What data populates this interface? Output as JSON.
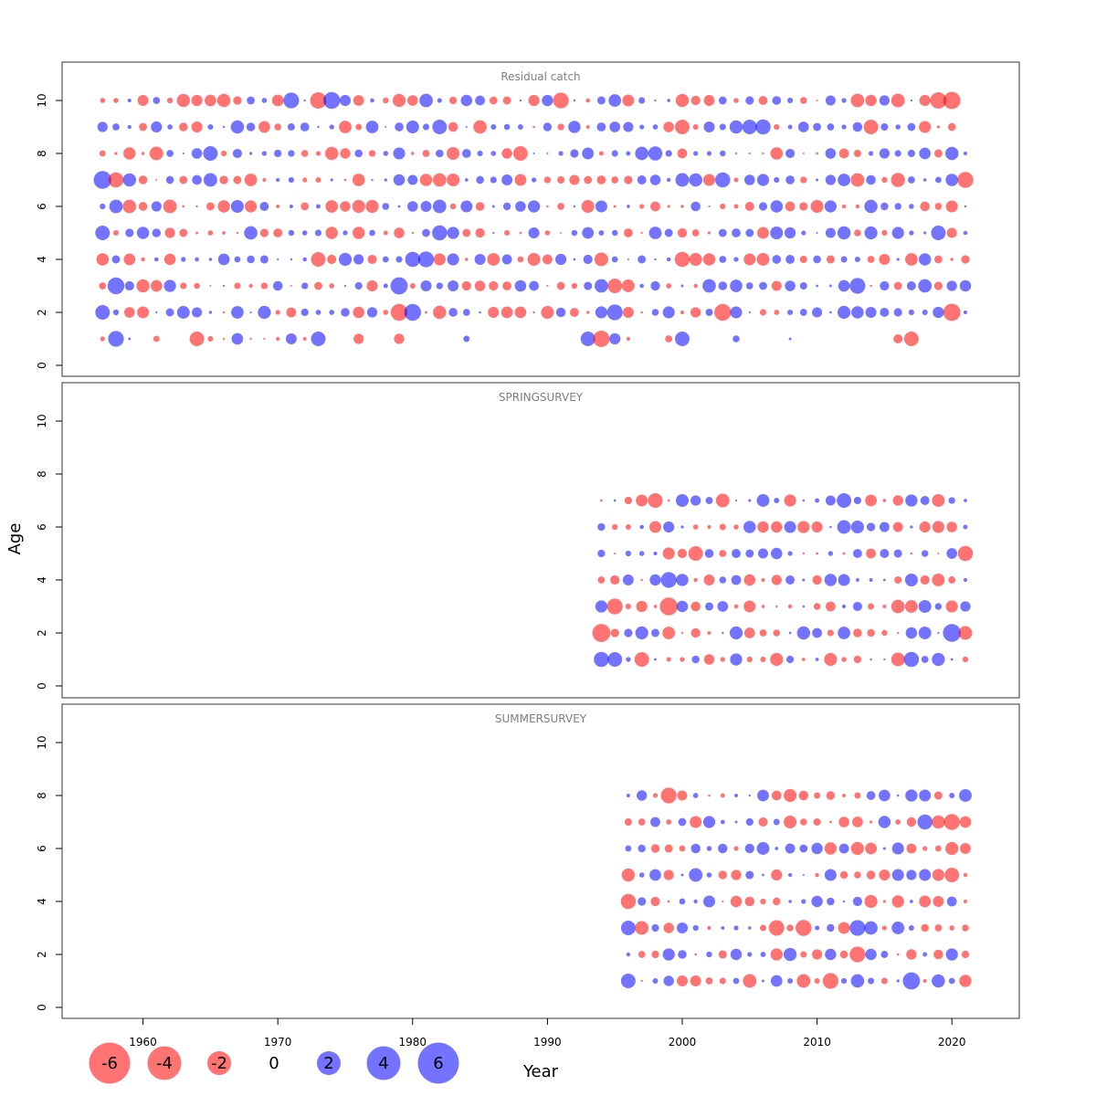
{
  "chart_data": {
    "type": "scatter",
    "subtype": "bubble-residuals",
    "xlabel": "Year",
    "ylabel": "Age",
    "xlim": [
      1954,
      2025
    ],
    "ylim": [
      -0.5,
      11
    ],
    "x_ticks": [
      1960,
      1970,
      1980,
      1990,
      2000,
      2010,
      2020
    ],
    "y_ticks": [
      0,
      2,
      4,
      6,
      8,
      10
    ],
    "colors": {
      "positive": "#0000ff",
      "negative": "#ff0000",
      "opacity": 0.55
    },
    "legend": {
      "placement": "bottom-left",
      "entries": [
        {
          "label": "-6",
          "value": -6
        },
        {
          "label": "-4",
          "value": -4
        },
        {
          "label": "-2",
          "value": -2
        },
        {
          "label": "0",
          "value": 0
        },
        {
          "label": "2",
          "value": 2
        },
        {
          "label": "4",
          "value": 4
        },
        {
          "label": "6",
          "value": 6
        }
      ]
    },
    "panels": [
      {
        "title": "Residual catch",
        "years": [
          1957,
          2021
        ],
        "ages": [
          1,
          10
        ],
        "missing": [
          [
            1960,
            1
          ],
          [
            1962,
            1
          ],
          [
            1963,
            1
          ],
          [
            1974,
            1
          ],
          [
            1975,
            1
          ],
          [
            1977,
            1
          ],
          [
            1978,
            1
          ],
          [
            1980,
            1
          ],
          [
            1981,
            1
          ],
          [
            1982,
            1
          ],
          [
            1983,
            1
          ],
          [
            1985,
            1
          ],
          [
            1986,
            1
          ],
          [
            1987,
            1
          ],
          [
            1988,
            1
          ],
          [
            1989,
            1
          ],
          [
            1990,
            1
          ],
          [
            1991,
            1
          ],
          [
            1992,
            1
          ],
          [
            1997,
            1
          ],
          [
            1998,
            1
          ],
          [
            2001,
            1
          ],
          [
            2002,
            1
          ],
          [
            2003,
            1
          ],
          [
            2005,
            1
          ],
          [
            2006,
            1
          ],
          [
            2007,
            1
          ],
          [
            2009,
            1
          ],
          [
            2010,
            1
          ],
          [
            2011,
            1
          ],
          [
            2012,
            1
          ],
          [
            2013,
            1
          ],
          [
            2014,
            1
          ],
          [
            2015,
            1
          ],
          [
            2018,
            1
          ],
          [
            2019,
            1
          ],
          [
            2020,
            1
          ],
          [
            2021,
            1
          ],
          [
            2021,
            10
          ],
          [
            2021,
            9
          ]
        ],
        "seed": 11,
        "highlights": [
          [
            1957,
            7,
            4.5
          ],
          [
            1958,
            7,
            -3.2
          ],
          [
            1974,
            10,
            4.0
          ],
          [
            1973,
            10,
            -3.8
          ],
          [
            1971,
            10,
            3.5
          ],
          [
            2020,
            10,
            -4.2
          ],
          [
            2019,
            10,
            -3.8
          ],
          [
            1982,
            9,
            3.0
          ],
          [
            2006,
            9,
            3.2
          ],
          [
            2005,
            9,
            3.0
          ],
          [
            2000,
            9,
            -3.0
          ],
          [
            2014,
            9,
            -3.0
          ],
          [
            1965,
            8,
            3.0
          ],
          [
            1988,
            8,
            -3.0
          ],
          [
            1998,
            8,
            2.8
          ],
          [
            2003,
            7,
            3.2
          ],
          [
            2021,
            7,
            -3.6
          ],
          [
            2016,
            7,
            -2.8
          ],
          [
            1957,
            5,
            3.0
          ],
          [
            1982,
            5,
            3.2
          ],
          [
            2019,
            5,
            3.0
          ],
          [
            1980,
            4,
            3.2
          ],
          [
            1981,
            4,
            3.5
          ],
          [
            2000,
            4,
            -3.2
          ],
          [
            1973,
            4,
            -3.0
          ],
          [
            1958,
            3,
            4.0
          ],
          [
            1979,
            3,
            4.2
          ],
          [
            2013,
            3,
            3.5
          ],
          [
            1995,
            3,
            -3.0
          ],
          [
            1957,
            2,
            3.0
          ],
          [
            1979,
            2,
            -4.0
          ],
          [
            1980,
            2,
            4.0
          ],
          [
            2003,
            2,
            -4.0
          ],
          [
            2020,
            2,
            -4.2
          ],
          [
            1995,
            2,
            3.5
          ],
          [
            1958,
            1,
            3.5
          ],
          [
            1994,
            1,
            -3.8
          ],
          [
            1993,
            1,
            3.0
          ],
          [
            2000,
            1,
            3.0
          ],
          [
            2017,
            1,
            -3.0
          ],
          [
            1973,
            1,
            3.0
          ],
          [
            1964,
            1,
            -3.0
          ],
          [
            1979,
            1,
            -1.5
          ],
          [
            1991,
            10,
            -3.5
          ]
        ]
      },
      {
        "title": "SPRINGSURVEY",
        "years": [
          1994,
          2021
        ],
        "ages": [
          1,
          7
        ],
        "missing": [],
        "seed": 23,
        "highlights": [
          [
            1994,
            2,
            -4.6
          ],
          [
            1999,
            3,
            -4.5
          ],
          [
            1998,
            7,
            -3.0
          ],
          [
            2012,
            7,
            3.0
          ],
          [
            1999,
            4,
            3.5
          ],
          [
            2020,
            2,
            4.5
          ],
          [
            1994,
            1,
            3.2
          ],
          [
            1995,
            1,
            3.0
          ],
          [
            2017,
            1,
            3.2
          ],
          [
            1997,
            1,
            -3.0
          ],
          [
            1995,
            3,
            -3.5
          ],
          [
            2001,
            5,
            -3.0
          ],
          [
            2021,
            5,
            -3.2
          ]
        ]
      },
      {
        "title": "SUMMERSURVEY",
        "years": [
          1996,
          2021
        ],
        "ages": [
          1,
          8
        ],
        "missing": [],
        "seed": 37,
        "highlights": [
          [
            2017,
            1,
            4.2
          ],
          [
            2011,
            1,
            -3.5
          ],
          [
            2013,
            2,
            -3.5
          ],
          [
            2013,
            3,
            3.5
          ],
          [
            2009,
            3,
            -3.6
          ],
          [
            2007,
            3,
            -3.4
          ],
          [
            1999,
            8,
            -3.5
          ],
          [
            1996,
            4,
            -3.2
          ],
          [
            2020,
            7,
            -3.6
          ],
          [
            2020,
            5,
            -3.0
          ],
          [
            2018,
            7,
            3.2
          ],
          [
            1996,
            3,
            3.0
          ],
          [
            1996,
            1,
            3.0
          ]
        ]
      }
    ]
  }
}
